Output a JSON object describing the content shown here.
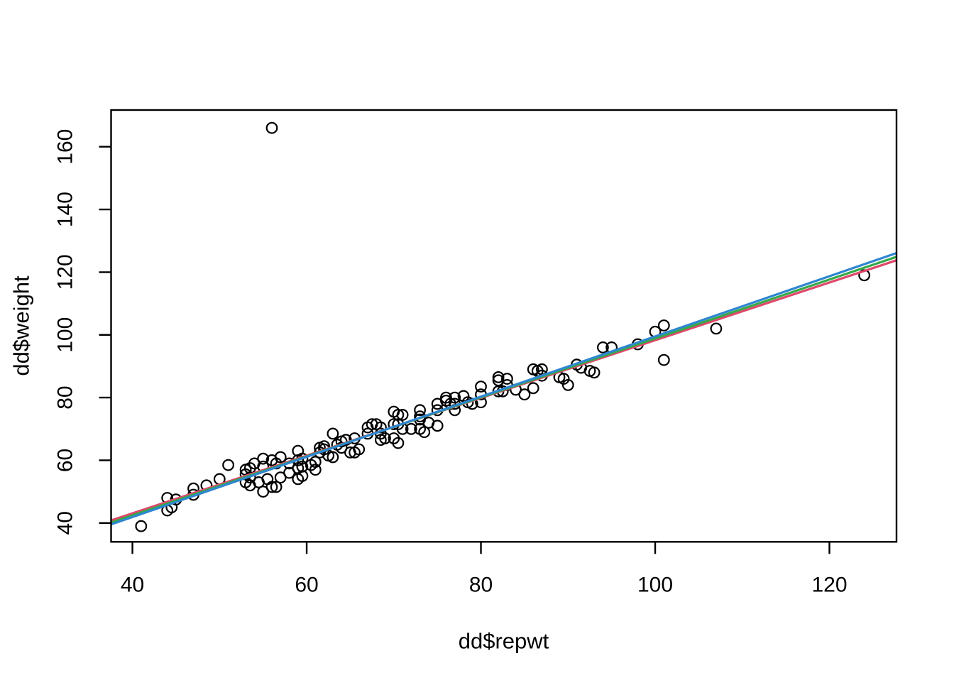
{
  "figure": {
    "background": "#ffffff",
    "marker_color": "#000000",
    "axis_color": "#000000"
  },
  "chart_data": {
    "type": "scatter",
    "title": "",
    "xlabel": "dd$repwt",
    "ylabel": "dd$weight",
    "x_ticks": [
      40,
      60,
      80,
      100,
      120
    ],
    "y_ticks": [
      40,
      60,
      80,
      100,
      120,
      140,
      160
    ],
    "xlim": [
      37.55,
      127.7
    ],
    "ylim": [
      34.0,
      171.7
    ],
    "grid": false,
    "legend": "none",
    "marker": "open-circle",
    "marker_color": "#000000",
    "outlier_point": [
      56,
      166
    ],
    "lines": [
      {
        "name": "fit-line-red",
        "color": "#E0476B",
        "slope": 0.92,
        "intercept": 6.3
      },
      {
        "name": "fit-line-green",
        "color": "#35A94A",
        "slope": 0.94,
        "intercept": 4.85
      },
      {
        "name": "fit-line-blue",
        "color": "#2E86D0",
        "slope": 0.96,
        "intercept": 3.5
      }
    ],
    "points": [
      [
        41,
        39
      ],
      [
        44,
        44
      ],
      [
        44.5,
        45
      ],
      [
        44,
        48
      ],
      [
        45,
        47.5
      ],
      [
        47,
        49
      ],
      [
        47,
        51
      ],
      [
        48.5,
        52
      ],
      [
        50,
        54
      ],
      [
        51,
        58.5
      ],
      [
        53,
        53
      ],
      [
        53,
        55.5
      ],
      [
        53,
        57
      ],
      [
        53.5,
        52
      ],
      [
        53.5,
        54.5
      ],
      [
        53.5,
        57.5
      ],
      [
        54,
        59
      ],
      [
        54.5,
        53
      ],
      [
        55,
        50
      ],
      [
        55,
        58
      ],
      [
        55,
        60.5
      ],
      [
        55.5,
        54
      ],
      [
        56,
        51.5
      ],
      [
        56,
        60
      ],
      [
        56.5,
        51.5
      ],
      [
        56.5,
        59
      ],
      [
        57,
        54.5
      ],
      [
        57,
        61
      ],
      [
        58,
        56
      ],
      [
        58,
        59
      ],
      [
        59,
        54
      ],
      [
        59,
        57.5
      ],
      [
        59,
        60
      ],
      [
        59.5,
        55
      ],
      [
        59,
        63
      ],
      [
        59.5,
        60.5
      ],
      [
        59.5,
        58
      ],
      [
        60.5,
        58.5
      ],
      [
        61,
        59.5
      ],
      [
        61,
        57
      ],
      [
        61.5,
        64
      ],
      [
        61.5,
        62.5
      ],
      [
        62,
        64.5
      ],
      [
        62,
        63.5
      ],
      [
        62.5,
        61.5
      ],
      [
        63,
        61
      ],
      [
        63,
        68.5
      ],
      [
        63.5,
        65
      ],
      [
        64,
        66
      ],
      [
        64,
        64
      ],
      [
        64.5,
        66.5
      ],
      [
        65,
        62.5
      ],
      [
        65.5,
        62.5
      ],
      [
        65.5,
        67
      ],
      [
        66,
        63.5
      ],
      [
        67,
        70.5
      ],
      [
        67,
        68.5
      ],
      [
        67.5,
        71.5
      ],
      [
        68,
        71.5
      ],
      [
        68.5,
        70.5
      ],
      [
        68.5,
        68.5
      ],
      [
        68.5,
        66.5
      ],
      [
        69,
        67
      ],
      [
        70,
        75.5
      ],
      [
        70,
        71.5
      ],
      [
        70,
        67
      ],
      [
        70.5,
        74.5
      ],
      [
        70.5,
        71.5
      ],
      [
        70.5,
        65.5
      ],
      [
        71,
        74.5
      ],
      [
        71,
        70
      ],
      [
        72,
        70
      ],
      [
        73,
        76
      ],
      [
        73,
        74
      ],
      [
        73,
        73
      ],
      [
        73,
        70
      ],
      [
        73.5,
        69
      ],
      [
        74,
        72
      ],
      [
        75,
        78
      ],
      [
        75,
        76
      ],
      [
        75,
        71
      ],
      [
        76,
        80
      ],
      [
        76,
        79
      ],
      [
        76.5,
        78
      ],
      [
        77,
        80
      ],
      [
        77,
        78
      ],
      [
        77,
        76
      ],
      [
        78,
        80.5
      ],
      [
        78.5,
        78.5
      ],
      [
        79,
        78
      ],
      [
        80,
        83.5
      ],
      [
        80,
        81
      ],
      [
        80,
        78.5
      ],
      [
        82,
        82
      ],
      [
        82,
        85.5
      ],
      [
        82,
        86.5
      ],
      [
        82.5,
        82
      ],
      [
        83,
        84
      ],
      [
        83,
        86
      ],
      [
        84,
        82.5
      ],
      [
        85,
        81
      ],
      [
        86,
        83
      ],
      [
        86,
        89
      ],
      [
        86.5,
        88.5
      ],
      [
        87,
        87
      ],
      [
        87,
        89
      ],
      [
        89,
        86.5
      ],
      [
        89.5,
        86
      ],
      [
        90,
        84
      ],
      [
        91,
        90.5
      ],
      [
        91.5,
        89.5
      ],
      [
        92.5,
        88.5
      ],
      [
        93,
        88
      ],
      [
        94,
        96
      ],
      [
        95,
        96
      ],
      [
        98,
        97
      ],
      [
        100,
        101
      ],
      [
        101,
        103
      ],
      [
        101,
        92
      ],
      [
        107,
        102
      ],
      [
        124,
        119
      ],
      [
        56,
        166
      ]
    ]
  }
}
